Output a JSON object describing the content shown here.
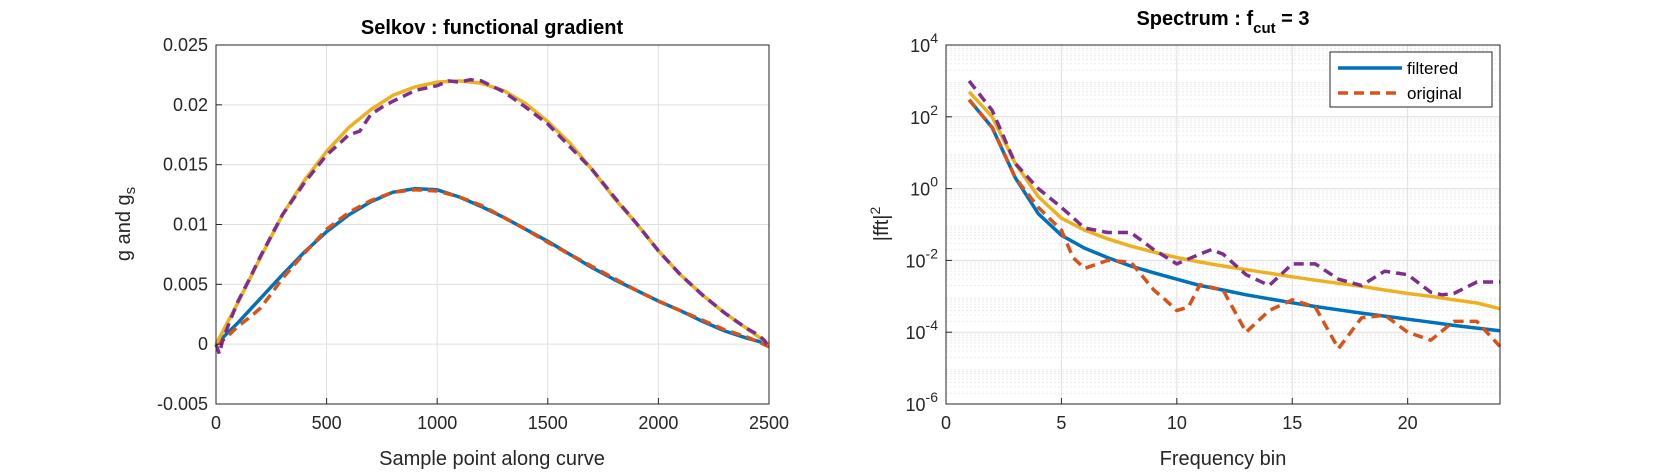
{
  "chart_data": [
    {
      "type": "line",
      "title": "Selkov : functional gradient",
      "xlabel": "Sample point along curve",
      "ylabel": {
        "main": "g and g",
        "sub": "s"
      },
      "xlim": [
        0,
        2500
      ],
      "ylim": [
        -0.005,
        0.025
      ],
      "xticks": [
        "0",
        "500",
        "1000",
        "1500",
        "2000",
        "2500"
      ],
      "yticks": [
        "-0.005",
        "0",
        "0.005",
        "0.01",
        "0.015",
        "0.02",
        "0.025"
      ],
      "grid": true,
      "series": [
        {
          "color": "#0072BD",
          "dash": "solid",
          "x": [
            0,
            100,
            200,
            300,
            400,
            500,
            600,
            700,
            800,
            900,
            1000,
            1100,
            1200,
            1300,
            1400,
            1500,
            1600,
            1700,
            1800,
            1900,
            2000,
            2100,
            2200,
            2300,
            2400,
            2500
          ],
          "y": [
            0,
            0.0018,
            0.0038,
            0.0058,
            0.0077,
            0.0094,
            0.0108,
            0.0119,
            0.0127,
            0.013,
            0.0129,
            0.0123,
            0.0115,
            0.0106,
            0.0096,
            0.0086,
            0.0075,
            0.0064,
            0.0054,
            0.0045,
            0.0036,
            0.0028,
            0.0019,
            0.0011,
            0.0005,
            0
          ]
        },
        {
          "color": "#D95319",
          "dash": "dashed",
          "x": [
            0,
            30,
            60,
            100,
            150,
            200,
            250,
            300,
            400,
            500,
            600,
            700,
            800,
            900,
            1000,
            1100,
            1200,
            1300,
            1400,
            1500,
            1600,
            1700,
            1800,
            1900,
            2000,
            2100,
            2200,
            2300,
            2400,
            2450,
            2500
          ],
          "y": [
            0,
            0.0003,
            0.0008,
            0.0015,
            0.0022,
            0.003,
            0.0042,
            0.0055,
            0.0076,
            0.0096,
            0.011,
            0.012,
            0.0127,
            0.0129,
            0.0128,
            0.0123,
            0.0116,
            0.0106,
            0.0096,
            0.0085,
            0.0075,
            0.0065,
            0.0055,
            0.0045,
            0.0036,
            0.0028,
            0.002,
            0.0012,
            0.0006,
            0.0002,
            -0.0002
          ]
        },
        {
          "color": "#EDB120",
          "dash": "solid",
          "x": [
            0,
            100,
            200,
            300,
            400,
            500,
            600,
            700,
            800,
            900,
            1000,
            1100,
            1200,
            1300,
            1400,
            1500,
            1600,
            1700,
            1800,
            1900,
            2000,
            2100,
            2200,
            2300,
            2400,
            2500
          ],
          "y": [
            0,
            0.0035,
            0.0072,
            0.0108,
            0.0137,
            0.0161,
            0.0181,
            0.0196,
            0.0208,
            0.0215,
            0.0219,
            0.022,
            0.0218,
            0.0212,
            0.0201,
            0.0186,
            0.0168,
            0.0146,
            0.0122,
            0.0101,
            0.0078,
            0.0058,
            0.0041,
            0.0026,
            0.0013,
            0
          ]
        },
        {
          "color": "#7E2F8E",
          "dash": "dashed",
          "x": [
            0,
            15,
            30,
            60,
            100,
            150,
            200,
            300,
            400,
            500,
            560,
            600,
            650,
            700,
            750,
            800,
            900,
            1000,
            1050,
            1100,
            1150,
            1200,
            1300,
            1400,
            1500,
            1600,
            1700,
            1800,
            1900,
            2000,
            2100,
            2200,
            2300,
            2400,
            2450,
            2480,
            2500
          ],
          "y": [
            0,
            -0.0008,
            0.0003,
            0.0018,
            0.0036,
            0.0054,
            0.0073,
            0.0108,
            0.0135,
            0.0158,
            0.0168,
            0.0175,
            0.0178,
            0.0192,
            0.0198,
            0.0203,
            0.0212,
            0.0216,
            0.022,
            0.0219,
            0.0221,
            0.022,
            0.0211,
            0.0198,
            0.0184,
            0.0165,
            0.0146,
            0.0123,
            0.0101,
            0.0078,
            0.0058,
            0.0041,
            0.0026,
            0.0013,
            0.0008,
            0.0003,
            -0.0004
          ]
        }
      ]
    },
    {
      "type": "line",
      "title": {
        "main": "Spectrum : f",
        "sub": "cut",
        "tail": " = 3"
      },
      "xlabel": "Frequency bin",
      "ylabel": {
        "main": "|fft|",
        "sup": "2"
      },
      "xlim": [
        0,
        24
      ],
      "ylim_exp": [
        -6,
        4
      ],
      "yscale": "log",
      "xticks": [
        "0",
        "5",
        "10",
        "15",
        "20"
      ],
      "ytick_base": "10",
      "ytick_exps": [
        "-6",
        "-4",
        "-2",
        "0",
        "2",
        "4"
      ],
      "grid": true,
      "legend": {
        "position": "top-right",
        "entries": [
          "filtered",
          "original"
        ]
      },
      "series": [
        {
          "color": "#0072BD",
          "dash": "solid",
          "name": "filtered",
          "x": [
            1,
            2,
            3,
            4,
            5,
            6,
            7,
            8,
            9,
            10,
            11,
            12,
            13,
            14,
            15,
            16,
            17,
            18,
            19,
            20,
            21,
            22,
            23,
            24
          ],
          "y": [
            300,
            50,
            2,
            0.2,
            0.05,
            0.022,
            0.012,
            0.007,
            0.0045,
            0.003,
            0.002,
            0.0015,
            0.0011,
            0.00085,
            0.00066,
            0.00052,
            0.00042,
            0.00034,
            0.00028,
            0.00023,
            0.00019,
            0.000155,
            0.00013,
            0.00011
          ]
        },
        {
          "color": "#D95319",
          "dash": "dashed",
          "name": "original",
          "x": [
            1,
            2,
            3,
            4,
            5,
            5.5,
            6,
            7,
            8,
            9,
            9.5,
            10,
            10.5,
            11,
            12,
            13,
            13.5,
            14,
            15,
            16,
            17,
            18,
            19,
            20,
            21,
            22,
            23,
            24
          ],
          "y": [
            300,
            50,
            2,
            0.3,
            0.07,
            0.012,
            0.006,
            0.01,
            0.009,
            0.0015,
            0.0008,
            0.0004,
            0.0005,
            0.0021,
            0.0015,
            0.0001,
            0.0002,
            0.0004,
            0.0008,
            0.0005,
            3.5e-05,
            0.00025,
            0.0003,
            0.0001,
            6e-05,
            0.0002,
            0.0002,
            4e-05
          ]
        },
        {
          "color": "#EDB120",
          "dash": "solid",
          "x": [
            1,
            2,
            3,
            4,
            5,
            6,
            7,
            8,
            9,
            10,
            11,
            12,
            13,
            14,
            15,
            16,
            17,
            18,
            19,
            20,
            21,
            22,
            23,
            24
          ],
          "y": [
            500,
            100,
            5,
            0.6,
            0.15,
            0.07,
            0.04,
            0.025,
            0.017,
            0.012,
            0.009,
            0.007,
            0.0055,
            0.0044,
            0.0035,
            0.0028,
            0.0023,
            0.0019,
            0.0015,
            0.0012,
            0.001,
            0.0008,
            0.00065,
            0.00045
          ]
        },
        {
          "color": "#7E2F8E",
          "dash": "dashed",
          "x": [
            1,
            2,
            3,
            4,
            5,
            6,
            7,
            8,
            9,
            10,
            11,
            11.5,
            12,
            13,
            14,
            15,
            16,
            17,
            18,
            19,
            20,
            21,
            21.5,
            22,
            23,
            24
          ],
          "y": [
            1000,
            150,
            5,
            1,
            0.3,
            0.08,
            0.06,
            0.06,
            0.02,
            0.008,
            0.015,
            0.02,
            0.015,
            0.004,
            0.002,
            0.008,
            0.008,
            0.003,
            0.002,
            0.005,
            0.004,
            0.0013,
            0.0011,
            0.0012,
            0.0025,
            0.0025
          ]
        }
      ]
    }
  ]
}
